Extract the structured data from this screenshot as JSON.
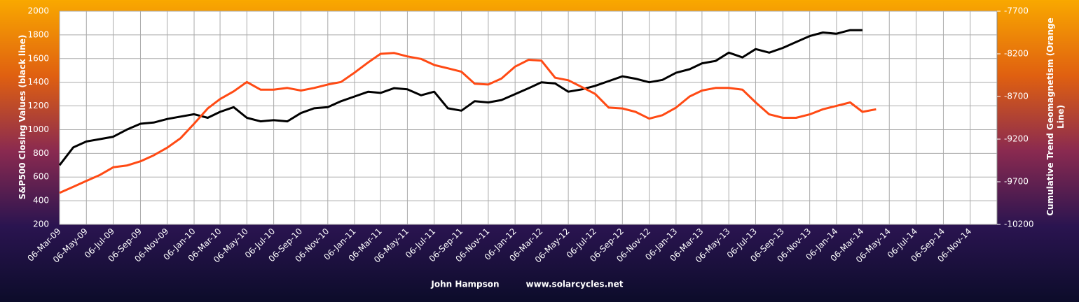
{
  "chart_data": {
    "type": "line",
    "ylabel": "S&P500 Closing Values (black line)",
    "y2label": "Cumulative Trend Geomagnetism (Orange Line)",
    "author": "John Hampson",
    "website": "www.solarcycles.net",
    "x": [
      "2009-03-06",
      "2009-04-06",
      "2009-05-06",
      "2009-06-06",
      "2009-07-06",
      "2009-08-06",
      "2009-09-06",
      "2009-10-06",
      "2009-11-06",
      "2009-12-06",
      "2010-01-06",
      "2010-02-06",
      "2010-03-06",
      "2010-04-06",
      "2010-05-06",
      "2010-06-06",
      "2010-07-06",
      "2010-08-06",
      "2010-09-06",
      "2010-10-06",
      "2010-11-06",
      "2010-12-06",
      "2011-01-06",
      "2011-02-06",
      "2011-03-06",
      "2011-04-06",
      "2011-05-06",
      "2011-06-06",
      "2011-07-06",
      "2011-08-06",
      "2011-09-06",
      "2011-10-06",
      "2011-11-06",
      "2011-12-06",
      "2012-01-06",
      "2012-02-06",
      "2012-03-06",
      "2012-04-06",
      "2012-05-06",
      "2012-06-06",
      "2012-07-06",
      "2012-08-06",
      "2012-09-06",
      "2012-10-06",
      "2012-11-06",
      "2012-12-06",
      "2013-01-06",
      "2013-02-06",
      "2013-03-06",
      "2013-04-06",
      "2013-05-06",
      "2013-06-06",
      "2013-07-06",
      "2013-08-06",
      "2013-09-06",
      "2013-10-06",
      "2013-11-06",
      "2013-12-06",
      "2014-01-06",
      "2014-02-06",
      "2014-03-06",
      "2014-04-06"
    ],
    "series": [
      {
        "name": "S&P500",
        "color": "#000000",
        "values": [
          700,
          850,
          900,
          920,
          940,
          1000,
          1050,
          1060,
          1090,
          1110,
          1130,
          1100,
          1150,
          1190,
          1100,
          1070,
          1080,
          1070,
          1140,
          1180,
          1190,
          1240,
          1280,
          1320,
          1310,
          1350,
          1340,
          1290,
          1320,
          1180,
          1160,
          1240,
          1230,
          1250,
          1300,
          1350,
          1400,
          1390,
          1320,
          1340,
          1370,
          1410,
          1450,
          1430,
          1400,
          1420,
          1480,
          1510,
          1560,
          1580,
          1650,
          1610,
          1680,
          1650,
          1690,
          1740,
          1790,
          1820,
          1810,
          1840,
          1840,
          null
        ]
      },
      {
        "name": "Cumulative Trend Geomagnetism",
        "color": "#ff4a14",
        "axis": "y2",
        "values": [
          -9830,
          -9760,
          -9690,
          -9620,
          -9530,
          -9510,
          -9460,
          -9390,
          -9300,
          -9190,
          -9020,
          -8840,
          -8730,
          -8640,
          -8530,
          -8620,
          -8620,
          -8600,
          -8630,
          -8600,
          -8560,
          -8530,
          -8420,
          -8300,
          -8200,
          -8190,
          -8230,
          -8260,
          -8330,
          -8370,
          -8410,
          -8550,
          -8560,
          -8490,
          -8350,
          -8270,
          -8280,
          -8480,
          -8510,
          -8590,
          -8670,
          -8830,
          -8840,
          -8880,
          -8960,
          -8920,
          -8830,
          -8700,
          -8630,
          -8600,
          -8600,
          -8620,
          -8770,
          -8910,
          -8950,
          -8950,
          -8910,
          -8850,
          -8810,
          -8770,
          -8880,
          -8850
        ]
      }
    ],
    "xlim": [
      "2009-03-06",
      "2015-01-06"
    ],
    "xticks": [
      {
        "value": "2009-03-06",
        "label": "06-Mar-09"
      },
      {
        "value": "2009-05-06",
        "label": "06-May-09"
      },
      {
        "value": "2009-07-06",
        "label": "06-Jul-09"
      },
      {
        "value": "2009-09-06",
        "label": "06-Sep-09"
      },
      {
        "value": "2009-11-06",
        "label": "06-Nov-09"
      },
      {
        "value": "2010-01-06",
        "label": "06-Jan-10"
      },
      {
        "value": "2010-03-06",
        "label": "06-Mar-10"
      },
      {
        "value": "2010-05-06",
        "label": "06-May-10"
      },
      {
        "value": "2010-07-06",
        "label": "06-Jul-10"
      },
      {
        "value": "2010-09-06",
        "label": "06-Sep-10"
      },
      {
        "value": "2010-11-06",
        "label": "06-Nov-10"
      },
      {
        "value": "2011-01-06",
        "label": "06-Jan-11"
      },
      {
        "value": "2011-03-06",
        "label": "06-Mar-11"
      },
      {
        "value": "2011-05-06",
        "label": "06-May-11"
      },
      {
        "value": "2011-07-06",
        "label": "06-Jul-11"
      },
      {
        "value": "2011-09-06",
        "label": "06-Sep-11"
      },
      {
        "value": "2011-11-06",
        "label": "06-Nov-11"
      },
      {
        "value": "2012-01-06",
        "label": "06-Jan-12"
      },
      {
        "value": "2012-03-06",
        "label": "06-Mar-12"
      },
      {
        "value": "2012-05-06",
        "label": "06-May-12"
      },
      {
        "value": "2012-07-06",
        "label": "06-Jul-12"
      },
      {
        "value": "2012-09-06",
        "label": "06-Sep-12"
      },
      {
        "value": "2012-11-06",
        "label": "06-Nov-12"
      },
      {
        "value": "2013-01-06",
        "label": "06-Jan-13"
      },
      {
        "value": "2013-03-06",
        "label": "06-Mar-13"
      },
      {
        "value": "2013-05-06",
        "label": "06-May-13"
      },
      {
        "value": "2013-07-06",
        "label": "06-Jul-13"
      },
      {
        "value": "2013-09-06",
        "label": "06-Sep-13"
      },
      {
        "value": "2013-11-06",
        "label": "06-Nov-13"
      },
      {
        "value": "2014-01-06",
        "label": "06-Jan-14"
      },
      {
        "value": "2014-03-06",
        "label": "06-Mar-14"
      },
      {
        "value": "2014-05-06",
        "label": "06-May-14"
      },
      {
        "value": "2014-07-06",
        "label": "06-Jul-14"
      },
      {
        "value": "2014-09-06",
        "label": "06-Sep-14"
      },
      {
        "value": "2014-11-06",
        "label": "06-Nov-14"
      }
    ],
    "ylim": [
      200,
      2000
    ],
    "yticks": [
      200,
      400,
      600,
      800,
      1000,
      1200,
      1400,
      1600,
      1800,
      2000
    ],
    "y2lim": [
      -10200,
      -7700
    ],
    "y2ticks": [
      -10200,
      -9700,
      -9200,
      -8700,
      -8200,
      -7700
    ],
    "grid": true
  }
}
